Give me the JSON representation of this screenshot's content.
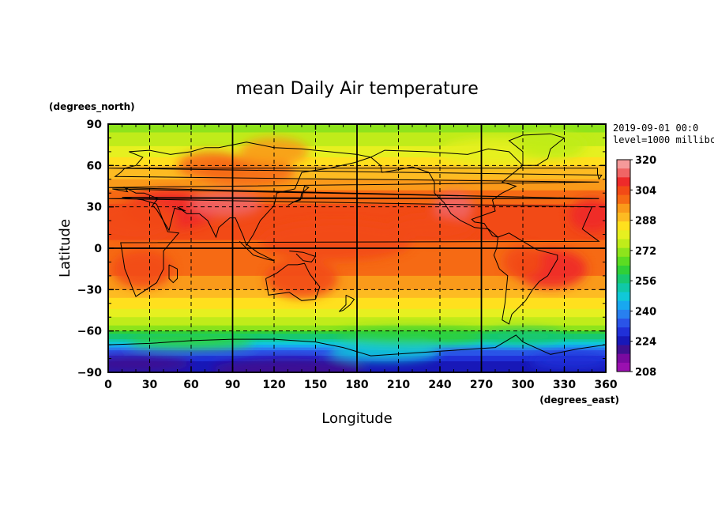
{
  "chart_data": {
    "type": "heatmap",
    "title": "mean Daily Air temperature",
    "xlabel": "Longitude",
    "ylabel": "Latitude",
    "x_units": "(degrees_east)",
    "y_units": "(degrees_north)",
    "date": "2019-09-01 00:0",
    "level": "level=1000 millibc",
    "xlim": [
      0,
      360
    ],
    "ylim": [
      -90,
      90
    ],
    "x_ticks": [
      "0",
      "30",
      "60",
      "90",
      "120",
      "150",
      "180",
      "210",
      "240",
      "270",
      "300",
      "330",
      "360"
    ],
    "y_ticks": [
      "90",
      "60",
      "30",
      "0",
      "−30",
      "−60",
      "−90"
    ],
    "colorbar_labels": [
      "320",
      "304",
      "288",
      "272",
      "256",
      "240",
      "224",
      "208"
    ],
    "colorbar_range": [
      208,
      320
    ],
    "grid": "dashed every 30 degrees, solid at 90/180/270 and equator"
  }
}
